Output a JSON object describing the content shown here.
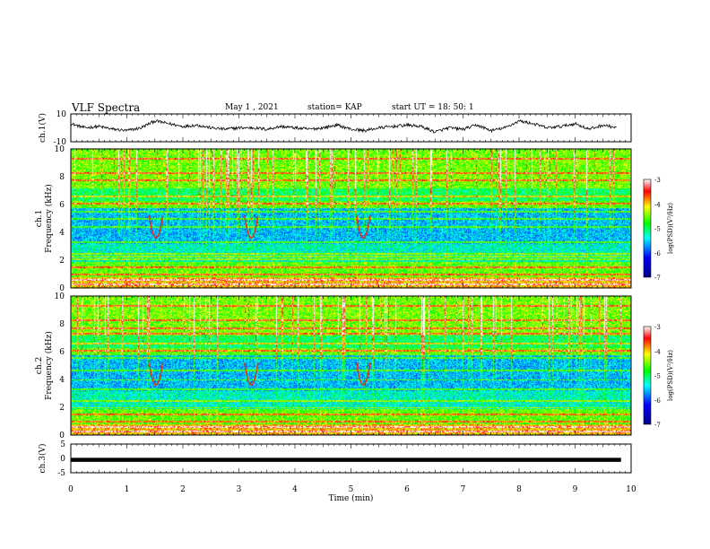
{
  "header": {
    "title": "VLF Spectra",
    "date": "May 1 , 2021",
    "station": "station= KAP",
    "start": "start  UT =  18: 50: 1"
  },
  "chart_data": [
    {
      "type": "line",
      "panel": "ch1_waveform",
      "ylabel": "ch.1(V)",
      "ylim": [
        -10,
        10
      ],
      "y_ticks": [
        "10",
        "-10"
      ],
      "xlim": [
        0,
        10
      ],
      "x": [
        0,
        0.25,
        0.5,
        0.75,
        1,
        1.25,
        1.5,
        1.75,
        2,
        2.25,
        2.5,
        2.75,
        3,
        3.25,
        3.5,
        3.75,
        4,
        4.25,
        4.5,
        4.75,
        5,
        5.25,
        5.5,
        5.75,
        6,
        6.25,
        6.5,
        6.75,
        7,
        7.25,
        7.5,
        7.75,
        8,
        8.25,
        8.5,
        8.75,
        9,
        9.25,
        9.5,
        9.75
      ],
      "y": [
        3,
        0,
        1,
        -1,
        -2,
        0,
        5,
        3,
        1,
        2,
        0,
        -1,
        0,
        0,
        -1,
        1,
        0,
        -1,
        0,
        2,
        -1,
        -2,
        0,
        1,
        2,
        1,
        -3,
        0,
        -1,
        2,
        -2,
        0,
        5,
        3,
        0,
        1,
        3,
        -1,
        2,
        0
      ]
    },
    {
      "type": "heatmap",
      "panel": "ch1_spectrogram",
      "ylabel": "ch.1\nFrequency (kHz)",
      "xlim": [
        0,
        10
      ],
      "ylim": [
        0,
        10
      ],
      "y_ticks": [
        "0",
        "2",
        "4",
        "6",
        "8",
        "10"
      ],
      "colorbar": {
        "label": "log(PSD)(V²/Hz)",
        "range": [
          -7,
          -3
        ],
        "ticks": [
          "-3",
          "-4",
          "-5",
          "-6",
          "-7"
        ]
      },
      "lines_khz": [
        0.3,
        0.6,
        1.0,
        1.5,
        2.1,
        2.3,
        2.5,
        3.3,
        4.4,
        5.0,
        5.5,
        6.1,
        6.6,
        7.8,
        8.3,
        9.3
      ],
      "trace_min": [
        1.4,
        3.1,
        5.1
      ]
    },
    {
      "type": "heatmap",
      "panel": "ch2_spectrogram",
      "ylabel": "ch.2\nFrequency (kHz)",
      "xlim": [
        0,
        10
      ],
      "ylim": [
        0,
        10
      ],
      "y_ticks": [
        "0",
        "2",
        "4",
        "6",
        "8",
        "10"
      ],
      "colorbar": {
        "label": "log(PSD)(V²/Hz)",
        "range": [
          -7,
          -3
        ],
        "ticks": [
          "-3",
          "-4",
          "-5",
          "-6",
          "-7"
        ]
      },
      "lines_khz": [
        0.3,
        0.6,
        1.0,
        1.5,
        2.0,
        2.5,
        3.3,
        4.0,
        4.7,
        5.6,
        6.1,
        6.6,
        7.3,
        7.7,
        8.3,
        9.3
      ],
      "trace_min": [
        1.4,
        3.1,
        5.1
      ]
    },
    {
      "type": "line",
      "panel": "ch3_waveform",
      "ylabel": "ch.3(V)",
      "ylim": [
        -5,
        5
      ],
      "y_ticks": [
        "5",
        "0",
        "-5"
      ],
      "xlim": [
        0,
        10
      ],
      "xlabel": "Time  (min)",
      "x_ticks": [
        "0",
        "1",
        "2",
        "3",
        "4",
        "5",
        "6",
        "7",
        "8",
        "9",
        "10"
      ],
      "band": [
        -1.2,
        0.2
      ]
    }
  ]
}
